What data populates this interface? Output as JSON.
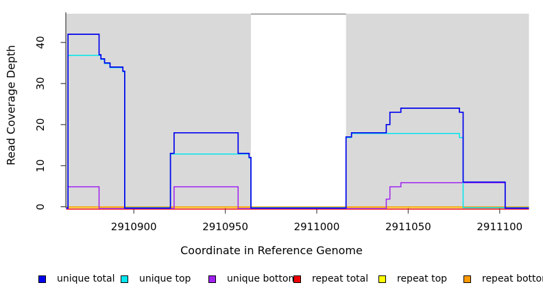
{
  "chart_data": {
    "type": "line",
    "subtype": "step-coverage",
    "title": "",
    "xlabel": "Coordinate in Reference Genome",
    "ylabel": "Read Coverage Depth",
    "xlim": [
      2910863,
      2911116
    ],
    "ylim": [
      0,
      47
    ],
    "grid": false,
    "legend_position": "bottom",
    "xticks": [
      2910900,
      2910950,
      2911000,
      2911050,
      2911100
    ],
    "xtick_labels": [
      "2910900",
      "2910950",
      "2911000",
      "2911050",
      "2911100"
    ],
    "yticks": [
      0,
      10,
      20,
      30,
      40
    ],
    "ytick_labels": [
      "0",
      "10",
      "20",
      "30",
      "40"
    ],
    "plot_background": "#ffffff",
    "shaded_region_color": "#d9d9d9",
    "shaded_regions": [
      [
        2910863,
        2910964
      ],
      [
        2911016,
        2911116
      ]
    ],
    "gap_region": [
      2910964,
      2911016
    ],
    "series": [
      {
        "name": "unique total",
        "color": "#0000EE",
        "points": [
          [
            2910863,
            0
          ],
          [
            2910864,
            42
          ],
          [
            2910881,
            37
          ],
          [
            2910882,
            36
          ],
          [
            2910884,
            35
          ],
          [
            2910887,
            34
          ],
          [
            2910894,
            33
          ],
          [
            2910895,
            0
          ],
          [
            2910920,
            13
          ],
          [
            2910922,
            18
          ],
          [
            2910957,
            13
          ],
          [
            2910963,
            12
          ],
          [
            2910964,
            0
          ],
          [
            2911016,
            17
          ],
          [
            2911019,
            18
          ],
          [
            2911038,
            20
          ],
          [
            2911040,
            23
          ],
          [
            2911046,
            24
          ],
          [
            2911078,
            23
          ],
          [
            2911080,
            6
          ],
          [
            2911103,
            0
          ],
          [
            2911116,
            0
          ]
        ]
      },
      {
        "name": "unique top",
        "color": "#00E5EE",
        "points": [
          [
            2910863,
            0
          ],
          [
            2910864,
            37
          ],
          [
            2910882,
            36
          ],
          [
            2910884,
            35
          ],
          [
            2910887,
            34
          ],
          [
            2910894,
            33
          ],
          [
            2910895,
            0
          ],
          [
            2910920,
            13
          ],
          [
            2910963,
            12
          ],
          [
            2910964,
            0
          ],
          [
            2911016,
            17
          ],
          [
            2911019,
            18
          ],
          [
            2911078,
            17
          ],
          [
            2911080,
            0
          ],
          [
            2911116,
            0
          ]
        ]
      },
      {
        "name": "unique bottom",
        "color": "#A020F0",
        "points": [
          [
            2910863,
            0
          ],
          [
            2910864,
            5
          ],
          [
            2910881,
            0
          ],
          [
            2910922,
            5
          ],
          [
            2910957,
            0
          ],
          [
            2911038,
            2
          ],
          [
            2911040,
            5
          ],
          [
            2911046,
            6
          ],
          [
            2911103,
            0
          ],
          [
            2911116,
            0
          ]
        ]
      },
      {
        "name": "repeat total",
        "color": "#EE0000",
        "points": [
          [
            2910863,
            0
          ],
          [
            2911116,
            0
          ]
        ]
      },
      {
        "name": "repeat top",
        "color": "#FFFF00",
        "points": [
          [
            2910863,
            0
          ],
          [
            2911116,
            0
          ]
        ]
      },
      {
        "name": "repeat bottom",
        "color": "#FF9900",
        "points": [
          [
            2910863,
            0
          ],
          [
            2911116,
            0
          ]
        ]
      }
    ]
  }
}
